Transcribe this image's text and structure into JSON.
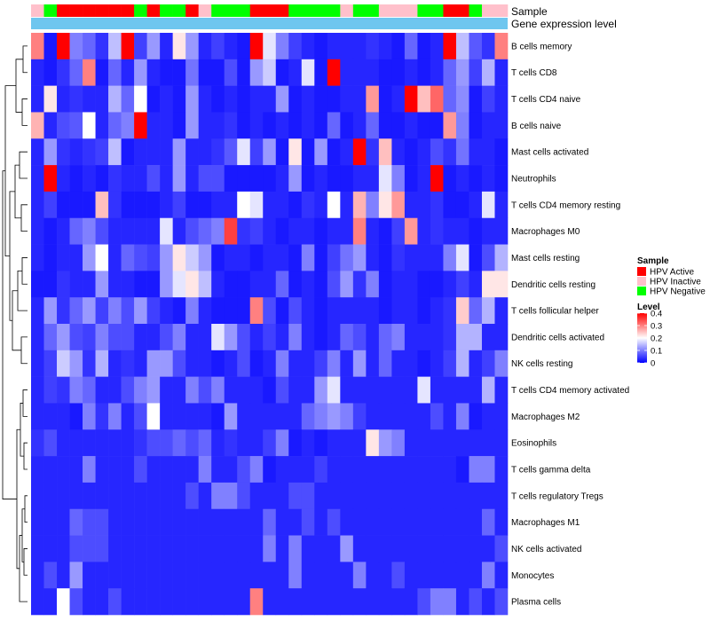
{
  "chart_data": {
    "type": "heatmap",
    "title": "",
    "annotation_tracks": [
      "Sample",
      "Gene expression level"
    ],
    "rows": [
      "B cells memory",
      "T cells CD8",
      "T cells CD4 naive",
      "B cells naive",
      "Mast cells activated",
      "Neutrophils",
      "T cells CD4 memory resting",
      "Macrophages M0",
      "Mast cells resting",
      "Dendritic cells resting",
      "T cells follicular helper",
      "Dendritic cells activated",
      "NK cells resting",
      "T cells CD4 memory activated",
      "Macrophages M2",
      "Eosinophils",
      "T cells gamma delta",
      "T cells regulatory  Tregs",
      "Macrophages M1",
      "NK cells activated",
      "Monocytes",
      "Plasma cells"
    ],
    "samples": [
      "I",
      "N",
      "A",
      "A",
      "A",
      "A",
      "A",
      "A",
      "N",
      "A",
      "N",
      "N",
      "A",
      "I",
      "N",
      "N",
      "N",
      "A",
      "A",
      "A",
      "N",
      "N",
      "N",
      "N",
      "I",
      "N",
      "N",
      "I",
      "I",
      "I",
      "N",
      "N",
      "A",
      "A",
      "N",
      "I",
      "I"
    ],
    "sample_legend": {
      "title": "Sample",
      "items": [
        {
          "code": "A",
          "label": "HPV Active",
          "color": "#ff0000"
        },
        {
          "code": "I",
          "label": "HPV Inactive",
          "color": "#ffc0cb"
        },
        {
          "code": "N",
          "label": "HPV Negative",
          "color": "#00ff00"
        }
      ]
    },
    "level_legend": {
      "title": "Level",
      "ticks": [
        "0.4",
        "0.3",
        "0.2",
        "0.1",
        "0"
      ],
      "tick_values": [
        0.4,
        0.3,
        0.2,
        0.1,
        0
      ],
      "min": 0,
      "max": 0.4,
      "colors": [
        "#0000ff",
        "#ffffff",
        "#ff0000"
      ]
    },
    "gene_expression_color": "#6ec6ef",
    "values": [
      [
        0.3,
        0.02,
        0.4,
        0.1,
        0.08,
        0.04,
        0.15,
        0.4,
        0.05,
        0.12,
        0.03,
        0.22,
        0.12,
        0.03,
        0.05,
        0.03,
        0.02,
        0.4,
        0.18,
        0.1,
        0.05,
        0.03,
        0.02,
        0.03,
        0.03,
        0.03,
        0.04,
        0.03,
        0.02,
        0.08,
        0.02,
        0.03,
        0.4,
        0.15,
        0.07,
        0.04,
        0.3
      ],
      [
        0.03,
        0.02,
        0.04,
        0.08,
        0.3,
        0.02,
        0.08,
        0.03,
        0.12,
        0.03,
        0.02,
        0.02,
        0.09,
        0.02,
        0.02,
        0.06,
        0.02,
        0.12,
        0.16,
        0.02,
        0.03,
        0.18,
        0.02,
        0.4,
        0.03,
        0.03,
        0.03,
        0.02,
        0.02,
        0.03,
        0.02,
        0.03,
        0.08,
        0.12,
        0.05,
        0.14,
        0.03
      ],
      [
        0.03,
        0.22,
        0.03,
        0.04,
        0.03,
        0.03,
        0.14,
        0.08,
        0.2,
        0.02,
        0.03,
        0.02,
        0.12,
        0.03,
        0.02,
        0.03,
        0.02,
        0.03,
        0.03,
        0.12,
        0.02,
        0.03,
        0.02,
        0.02,
        0.03,
        0.03,
        0.28,
        0.02,
        0.03,
        0.4,
        0.25,
        0.32,
        0.08,
        0.11,
        0.02,
        0.05,
        0.03
      ],
      [
        0.26,
        0.03,
        0.06,
        0.07,
        0.2,
        0.03,
        0.08,
        0.1,
        0.4,
        0.03,
        0.03,
        0.02,
        0.12,
        0.03,
        0.03,
        0.04,
        0.02,
        0.03,
        0.02,
        0.03,
        0.02,
        0.03,
        0.02,
        0.08,
        0.02,
        0.03,
        0.08,
        0.02,
        0.02,
        0.03,
        0.02,
        0.02,
        0.28,
        0.1,
        0.02,
        0.03,
        0.03
      ],
      [
        0.03,
        0.12,
        0.04,
        0.03,
        0.04,
        0.05,
        0.15,
        0.02,
        0.03,
        0.03,
        0.03,
        0.12,
        0.03,
        0.03,
        0.04,
        0.07,
        0.18,
        0.05,
        0.12,
        0.02,
        0.22,
        0.02,
        0.12,
        0.02,
        0.03,
        0.4,
        0.04,
        0.25,
        0.03,
        0.02,
        0.03,
        0.06,
        0.04,
        0.09,
        0.03,
        0.03,
        0.02
      ],
      [
        0.03,
        0.4,
        0.03,
        0.02,
        0.03,
        0.02,
        0.04,
        0.03,
        0.03,
        0.06,
        0.03,
        0.12,
        0.03,
        0.06,
        0.06,
        0.02,
        0.02,
        0.02,
        0.02,
        0.03,
        0.12,
        0.02,
        0.03,
        0.02,
        0.02,
        0.03,
        0.03,
        0.18,
        0.1,
        0.02,
        0.03,
        0.4,
        0.02,
        0.03,
        0.02,
        0.03,
        0.02
      ],
      [
        0.03,
        0.05,
        0.02,
        0.02,
        0.02,
        0.25,
        0.04,
        0.02,
        0.02,
        0.02,
        0.03,
        0.05,
        0.02,
        0.02,
        0.03,
        0.03,
        0.2,
        0.18,
        0.03,
        0.03,
        0.02,
        0.04,
        0.03,
        0.2,
        0.03,
        0.26,
        0.1,
        0.22,
        0.28,
        0.03,
        0.03,
        0.04,
        0.02,
        0.02,
        0.03,
        0.18,
        0.03
      ],
      [
        0.03,
        0.02,
        0.03,
        0.08,
        0.1,
        0.06,
        0.03,
        0.03,
        0.03,
        0.03,
        0.18,
        0.03,
        0.06,
        0.08,
        0.1,
        0.35,
        0.04,
        0.05,
        0.03,
        0.02,
        0.03,
        0.03,
        0.02,
        0.03,
        0.03,
        0.3,
        0.03,
        0.02,
        0.05,
        0.28,
        0.03,
        0.04,
        0.03,
        0.03,
        0.02,
        0.03,
        0.03
      ],
      [
        0.03,
        0.02,
        0.03,
        0.03,
        0.12,
        0.2,
        0.03,
        0.08,
        0.06,
        0.05,
        0.12,
        0.22,
        0.16,
        0.12,
        0.02,
        0.03,
        0.03,
        0.02,
        0.03,
        0.03,
        0.02,
        0.1,
        0.02,
        0.05,
        0.09,
        0.12,
        0.03,
        0.02,
        0.04,
        0.03,
        0.03,
        0.03,
        0.1,
        0.18,
        0.02,
        0.06,
        0.14
      ],
      [
        0.02,
        0.02,
        0.04,
        0.03,
        0.03,
        0.12,
        0.03,
        0.03,
        0.02,
        0.02,
        0.12,
        0.18,
        0.22,
        0.15,
        0.03,
        0.02,
        0.02,
        0.03,
        0.03,
        0.08,
        0.02,
        0.03,
        0.02,
        0.06,
        0.12,
        0.04,
        0.1,
        0.02,
        0.03,
        0.03,
        0.02,
        0.02,
        0.03,
        0.05,
        0.03,
        0.22,
        0.22
      ],
      [
        0.03,
        0.12,
        0.04,
        0.08,
        0.12,
        0.05,
        0.1,
        0.06,
        0.12,
        0.05,
        0.03,
        0.02,
        0.1,
        0.03,
        0.02,
        0.02,
        0.02,
        0.3,
        0.06,
        0.02,
        0.06,
        0.03,
        0.02,
        0.03,
        0.03,
        0.03,
        0.03,
        0.02,
        0.03,
        0.03,
        0.02,
        0.03,
        0.04,
        0.24,
        0.08,
        0.14,
        0.03
      ],
      [
        0.03,
        0.08,
        0.12,
        0.06,
        0.05,
        0.1,
        0.06,
        0.06,
        0.03,
        0.03,
        0.06,
        0.1,
        0.03,
        0.03,
        0.18,
        0.12,
        0.06,
        0.03,
        0.05,
        0.03,
        0.1,
        0.03,
        0.02,
        0.03,
        0.08,
        0.06,
        0.03,
        0.08,
        0.1,
        0.03,
        0.03,
        0.03,
        0.04,
        0.14,
        0.14,
        0.03,
        0.03
      ],
      [
        0.03,
        0.05,
        0.16,
        0.12,
        0.04,
        0.14,
        0.03,
        0.04,
        0.03,
        0.12,
        0.12,
        0.06,
        0.03,
        0.03,
        0.02,
        0.03,
        0.06,
        0.02,
        0.03,
        0.1,
        0.03,
        0.03,
        0.05,
        0.1,
        0.03,
        0.12,
        0.03,
        0.08,
        0.03,
        0.03,
        0.02,
        0.03,
        0.05,
        0.14,
        0.03,
        0.05,
        0.1
      ],
      [
        0.03,
        0.05,
        0.04,
        0.1,
        0.08,
        0.03,
        0.03,
        0.06,
        0.1,
        0.12,
        0.03,
        0.03,
        0.1,
        0.06,
        0.1,
        0.03,
        0.03,
        0.03,
        0.02,
        0.06,
        0.03,
        0.03,
        0.12,
        0.18,
        0.03,
        0.03,
        0.03,
        0.03,
        0.03,
        0.03,
        0.18,
        0.03,
        0.03,
        0.03,
        0.03,
        0.14,
        0.03
      ],
      [
        0.03,
        0.03,
        0.03,
        0.02,
        0.1,
        0.04,
        0.1,
        0.03,
        0.06,
        0.2,
        0.03,
        0.03,
        0.03,
        0.03,
        0.02,
        0.12,
        0.03,
        0.03,
        0.03,
        0.03,
        0.03,
        0.08,
        0.1,
        0.12,
        0.1,
        0.05,
        0.03,
        0.03,
        0.03,
        0.03,
        0.03,
        0.06,
        0.03,
        0.1,
        0.02,
        0.03,
        0.03
      ],
      [
        0.04,
        0.06,
        0.03,
        0.03,
        0.03,
        0.03,
        0.03,
        0.03,
        0.04,
        0.06,
        0.06,
        0.08,
        0.06,
        0.08,
        0.03,
        0.04,
        0.03,
        0.03,
        0.05,
        0.1,
        0.02,
        0.03,
        0.02,
        0.03,
        0.03,
        0.03,
        0.22,
        0.12,
        0.1,
        0.03,
        0.03,
        0.03,
        0.03,
        0.03,
        0.03,
        0.03,
        0.03
      ],
      [
        0.03,
        0.03,
        0.03,
        0.03,
        0.1,
        0.03,
        0.03,
        0.03,
        0.06,
        0.03,
        0.03,
        0.03,
        0.03,
        0.1,
        0.03,
        0.03,
        0.06,
        0.1,
        0.02,
        0.03,
        0.03,
        0.03,
        0.05,
        0.03,
        0.03,
        0.03,
        0.03,
        0.03,
        0.03,
        0.03,
        0.03,
        0.03,
        0.03,
        0.02,
        0.1,
        0.1,
        0.03
      ],
      [
        0.03,
        0.03,
        0.03,
        0.03,
        0.03,
        0.03,
        0.03,
        0.03,
        0.03,
        0.03,
        0.03,
        0.03,
        0.06,
        0.03,
        0.1,
        0.1,
        0.06,
        0.03,
        0.03,
        0.03,
        0.06,
        0.06,
        0.03,
        0.03,
        0.03,
        0.03,
        0.03,
        0.03,
        0.03,
        0.03,
        0.03,
        0.03,
        0.03,
        0.03,
        0.03,
        0.03,
        0.03
      ],
      [
        0.03,
        0.03,
        0.03,
        0.08,
        0.06,
        0.06,
        0.03,
        0.03,
        0.03,
        0.03,
        0.03,
        0.03,
        0.03,
        0.03,
        0.03,
        0.03,
        0.03,
        0.03,
        0.08,
        0.03,
        0.03,
        0.06,
        0.03,
        0.06,
        0.03,
        0.03,
        0.03,
        0.03,
        0.03,
        0.03,
        0.03,
        0.03,
        0.03,
        0.03,
        0.03,
        0.08,
        0.03
      ],
      [
        0.03,
        0.03,
        0.03,
        0.06,
        0.06,
        0.06,
        0.03,
        0.03,
        0.03,
        0.03,
        0.03,
        0.03,
        0.03,
        0.03,
        0.03,
        0.03,
        0.03,
        0.03,
        0.1,
        0.03,
        0.1,
        0.03,
        0.03,
        0.03,
        0.12,
        0.03,
        0.03,
        0.03,
        0.03,
        0.03,
        0.03,
        0.03,
        0.03,
        0.03,
        0.03,
        0.03,
        0.06
      ],
      [
        0.03,
        0.06,
        0.03,
        0.12,
        0.03,
        0.03,
        0.03,
        0.03,
        0.03,
        0.03,
        0.03,
        0.03,
        0.03,
        0.03,
        0.03,
        0.03,
        0.03,
        0.03,
        0.03,
        0.03,
        0.1,
        0.03,
        0.03,
        0.03,
        0.03,
        0.1,
        0.03,
        0.03,
        0.06,
        0.03,
        0.03,
        0.03,
        0.03,
        0.03,
        0.03,
        0.1,
        0.03
      ],
      [
        0.03,
        0.03,
        0.2,
        0.06,
        0.03,
        0.03,
        0.06,
        0.03,
        0.03,
        0.03,
        0.03,
        0.03,
        0.03,
        0.03,
        0.03,
        0.03,
        0.03,
        0.3,
        0.03,
        0.03,
        0.03,
        0.03,
        0.03,
        0.03,
        0.03,
        0.03,
        0.03,
        0.03,
        0.03,
        0.03,
        0.06,
        0.1,
        0.1,
        0.03,
        0.06,
        0.03,
        0.06
      ]
    ]
  }
}
